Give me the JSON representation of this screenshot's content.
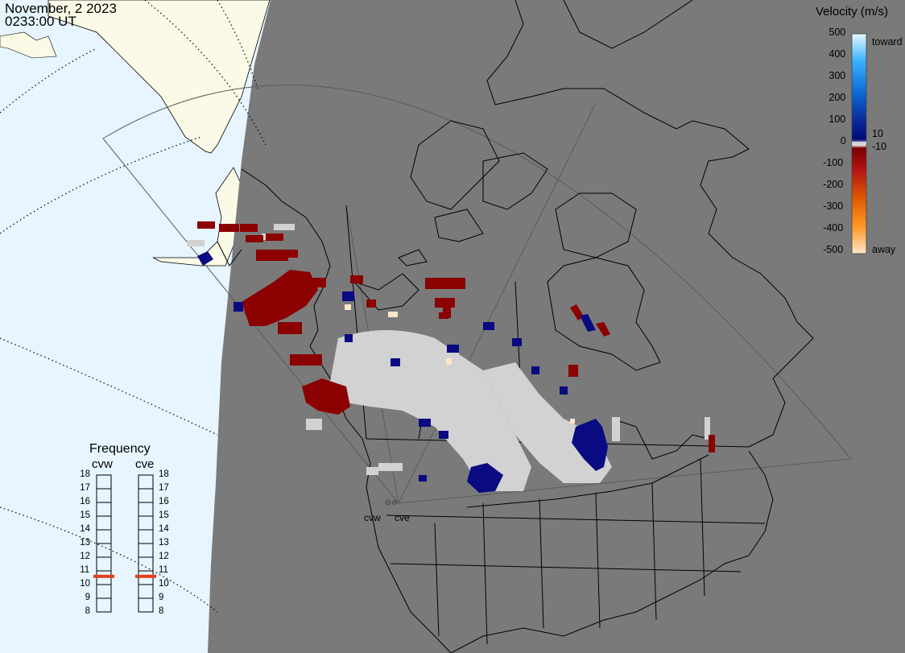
{
  "header": {
    "date": "November, 2 2023",
    "time": "0233:00 UT"
  },
  "colors": {
    "ocean": "#e6f5ff",
    "land_daylight": "#fafae6",
    "night_shade": "#7a7a7a",
    "coast_lines": "#000000",
    "ground_scatter": "#d2d2d2",
    "indicator": "#e0401a"
  },
  "velocity_scale": {
    "title": "Velocity (m/s)",
    "ticks": [
      "500",
      "400",
      "300",
      "200",
      "100",
      "10",
      "0",
      "-10",
      "-100",
      "-200",
      "-300",
      "-400",
      "-500"
    ],
    "toward_label": "toward",
    "away_label": "away",
    "colors": [
      "#e8f8ff",
      "#3cb4ff",
      "#0a64d2",
      "#0a2896",
      "#000a78",
      "#7a0000",
      "#b41414",
      "#e05a00",
      "#ff9a28",
      "#ffe6c8"
    ]
  },
  "frequency": {
    "title": "Frequency",
    "radars": [
      {
        "name": "cvw",
        "current": 10.6
      },
      {
        "name": "cve",
        "current": 10.6
      }
    ],
    "ticks": [
      "18",
      "17",
      "16",
      "15",
      "14",
      "13",
      "12",
      "11",
      "10",
      "9",
      "8"
    ]
  },
  "sites": [
    {
      "name": "cvw"
    },
    {
      "name": "cve"
    }
  ]
}
